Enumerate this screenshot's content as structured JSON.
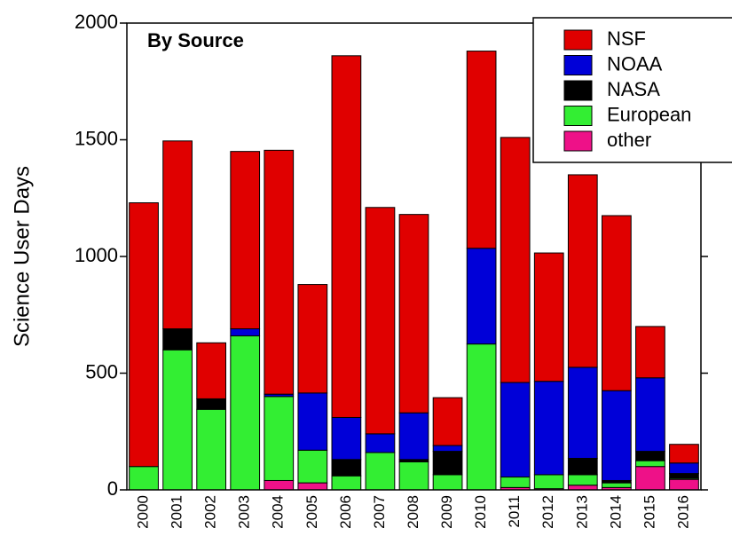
{
  "chart_data": {
    "type": "stacked_bar",
    "title": "By Source",
    "y_label": "Science User Days",
    "categories": [
      "2000",
      "2001",
      "2002",
      "2003",
      "2004",
      "2005",
      "2006",
      "2007",
      "2008",
      "2009",
      "2010",
      "2011",
      "2012",
      "2013",
      "2014",
      "2015",
      "2016"
    ],
    "series": [
      {
        "name": "other",
        "color": "#ee1188",
        "label_color": "#ee1188",
        "values": [
          0,
          0,
          0,
          0,
          40,
          30,
          0,
          0,
          0,
          0,
          0,
          10,
          5,
          20,
          10,
          100,
          45
        ]
      },
      {
        "name": "European",
        "color": "#33ee33",
        "label_color": "#000000",
        "values": [
          100,
          600,
          345,
          660,
          360,
          140,
          60,
          160,
          120,
          65,
          625,
          45,
          60,
          45,
          20,
          25,
          5
        ]
      },
      {
        "name": "NASA",
        "color": "#000000",
        "label_color": "#208040",
        "values": [
          0,
          90,
          45,
          0,
          0,
          0,
          70,
          0,
          10,
          100,
          0,
          0,
          0,
          70,
          10,
          40,
          20
        ]
      },
      {
        "name": "NOAA",
        "color": "#0000d8",
        "label_color": "#0000d8",
        "values": [
          0,
          0,
          0,
          30,
          10,
          245,
          180,
          80,
          200,
          25,
          410,
          405,
          400,
          390,
          385,
          315,
          45
        ]
      },
      {
        "name": "NSF",
        "color": "#e00000",
        "label_color": "#e00000",
        "values": [
          1130,
          805,
          240,
          760,
          1045,
          465,
          1550,
          970,
          850,
          205,
          845,
          1050,
          550,
          825,
          750,
          220,
          80
        ]
      }
    ],
    "ylim": [
      0,
      2000
    ],
    "yticks": [
      0,
      500,
      1000,
      1500,
      2000
    ],
    "legend": "upper right"
  }
}
